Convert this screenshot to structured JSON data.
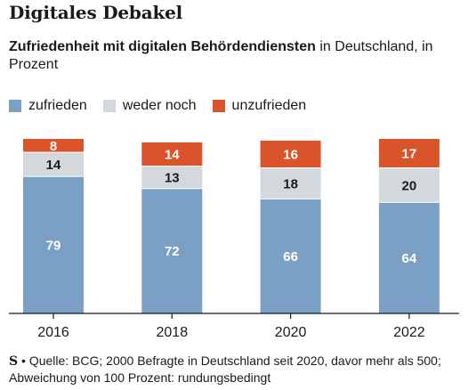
{
  "header": {
    "title": "Digitales Debakel",
    "subtitle_bold": "Zufriedenheit mit digitalen Behördendiensten",
    "subtitle_rest": " in Deutschland, in Prozent"
  },
  "legend": [
    {
      "label": "zufrieden",
      "color": "#7aa0c6"
    },
    {
      "label": "weder noch",
      "color": "#d3d8dd"
    },
    {
      "label": "unzufrieden",
      "color": "#d9532b"
    }
  ],
  "chart_data": {
    "type": "bar",
    "stacked": true,
    "categories": [
      "2016",
      "2018",
      "2020",
      "2022"
    ],
    "series": [
      {
        "name": "zufrieden",
        "values": [
          79,
          72,
          66,
          64
        ],
        "color": "#7aa0c6"
      },
      {
        "name": "weder noch",
        "values": [
          14,
          13,
          18,
          20
        ],
        "color": "#d3d8dd"
      },
      {
        "name": "unzufrieden",
        "values": [
          8,
          14,
          16,
          17
        ],
        "color": "#d9532b"
      }
    ],
    "ylim": [
      0,
      101
    ],
    "grid": false,
    "legend_position": "top-left"
  },
  "footer": {
    "logo": "S",
    "source": "Quelle: BCG; 2000 Befragte in Deutschland seit 2020, davor mehr als 500; Abweichung von 100 Prozent: rundungsbedingt"
  }
}
